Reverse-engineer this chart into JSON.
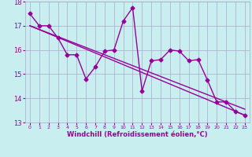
{
  "xlabel": "Windchill (Refroidissement éolien,°C)",
  "ylabel": "",
  "bg_color": "#c8eef0",
  "line_color": "#990099",
  "grid_color": "#aaaacc",
  "xlim": [
    -0.5,
    23.5
  ],
  "ylim": [
    13,
    18
  ],
  "xticks": [
    0,
    1,
    2,
    3,
    4,
    5,
    6,
    7,
    8,
    9,
    10,
    11,
    12,
    13,
    14,
    15,
    16,
    17,
    18,
    19,
    20,
    21,
    22,
    23
  ],
  "yticks": [
    13,
    14,
    15,
    16,
    17,
    18
  ],
  "series1_x": [
    0,
    1,
    2,
    3,
    4,
    5,
    6,
    7,
    8,
    9,
    10,
    11,
    12,
    13,
    14,
    15,
    16,
    17,
    18,
    19,
    20,
    21,
    22,
    23
  ],
  "series1_y": [
    17.5,
    17.0,
    17.0,
    16.5,
    15.8,
    15.8,
    14.8,
    15.3,
    15.95,
    16.0,
    17.2,
    17.75,
    14.3,
    15.55,
    15.6,
    16.0,
    15.95,
    15.55,
    15.6,
    14.75,
    13.85,
    13.85,
    13.45,
    13.3
  ],
  "trend1_x": [
    0,
    23
  ],
  "trend1_y": [
    17.0,
    13.55
  ],
  "trend2_x": [
    0,
    23
  ],
  "trend2_y": [
    17.0,
    13.3
  ],
  "marker": "D",
  "markersize": 2.5,
  "linewidth": 1.0
}
